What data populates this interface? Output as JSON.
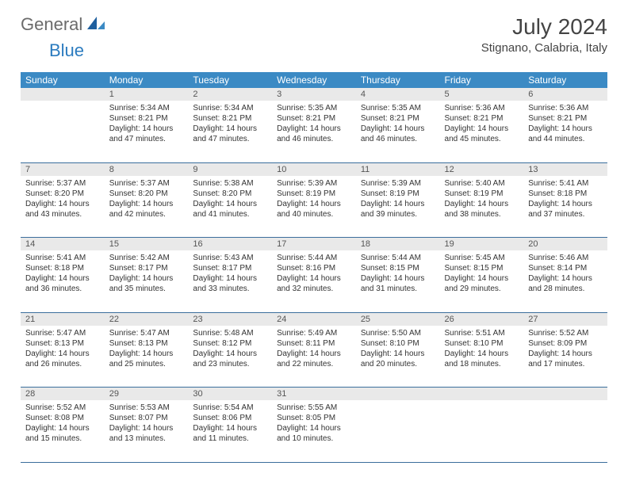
{
  "logo": {
    "part1": "General",
    "part2": "Blue"
  },
  "title": "July 2024",
  "location": "Stignano, Calabria, Italy",
  "colors": {
    "header_bg": "#3b8ac4",
    "header_text": "#ffffff",
    "daynum_bg": "#e9e9e9",
    "daynum_text": "#555555",
    "body_text": "#333333",
    "row_border": "#3b6e9c",
    "logo_gray": "#6b6b6b",
    "logo_blue": "#2b7bbf"
  },
  "weekdays": [
    "Sunday",
    "Monday",
    "Tuesday",
    "Wednesday",
    "Thursday",
    "Friday",
    "Saturday"
  ],
  "weeks": [
    [
      {
        "n": "",
        "sunrise": "",
        "sunset": "",
        "daylight": ""
      },
      {
        "n": "1",
        "sunrise": "Sunrise: 5:34 AM",
        "sunset": "Sunset: 8:21 PM",
        "daylight": "Daylight: 14 hours and 47 minutes."
      },
      {
        "n": "2",
        "sunrise": "Sunrise: 5:34 AM",
        "sunset": "Sunset: 8:21 PM",
        "daylight": "Daylight: 14 hours and 47 minutes."
      },
      {
        "n": "3",
        "sunrise": "Sunrise: 5:35 AM",
        "sunset": "Sunset: 8:21 PM",
        "daylight": "Daylight: 14 hours and 46 minutes."
      },
      {
        "n": "4",
        "sunrise": "Sunrise: 5:35 AM",
        "sunset": "Sunset: 8:21 PM",
        "daylight": "Daylight: 14 hours and 46 minutes."
      },
      {
        "n": "5",
        "sunrise": "Sunrise: 5:36 AM",
        "sunset": "Sunset: 8:21 PM",
        "daylight": "Daylight: 14 hours and 45 minutes."
      },
      {
        "n": "6",
        "sunrise": "Sunrise: 5:36 AM",
        "sunset": "Sunset: 8:21 PM",
        "daylight": "Daylight: 14 hours and 44 minutes."
      }
    ],
    [
      {
        "n": "7",
        "sunrise": "Sunrise: 5:37 AM",
        "sunset": "Sunset: 8:20 PM",
        "daylight": "Daylight: 14 hours and 43 minutes."
      },
      {
        "n": "8",
        "sunrise": "Sunrise: 5:37 AM",
        "sunset": "Sunset: 8:20 PM",
        "daylight": "Daylight: 14 hours and 42 minutes."
      },
      {
        "n": "9",
        "sunrise": "Sunrise: 5:38 AM",
        "sunset": "Sunset: 8:20 PM",
        "daylight": "Daylight: 14 hours and 41 minutes."
      },
      {
        "n": "10",
        "sunrise": "Sunrise: 5:39 AM",
        "sunset": "Sunset: 8:19 PM",
        "daylight": "Daylight: 14 hours and 40 minutes."
      },
      {
        "n": "11",
        "sunrise": "Sunrise: 5:39 AM",
        "sunset": "Sunset: 8:19 PM",
        "daylight": "Daylight: 14 hours and 39 minutes."
      },
      {
        "n": "12",
        "sunrise": "Sunrise: 5:40 AM",
        "sunset": "Sunset: 8:19 PM",
        "daylight": "Daylight: 14 hours and 38 minutes."
      },
      {
        "n": "13",
        "sunrise": "Sunrise: 5:41 AM",
        "sunset": "Sunset: 8:18 PM",
        "daylight": "Daylight: 14 hours and 37 minutes."
      }
    ],
    [
      {
        "n": "14",
        "sunrise": "Sunrise: 5:41 AM",
        "sunset": "Sunset: 8:18 PM",
        "daylight": "Daylight: 14 hours and 36 minutes."
      },
      {
        "n": "15",
        "sunrise": "Sunrise: 5:42 AM",
        "sunset": "Sunset: 8:17 PM",
        "daylight": "Daylight: 14 hours and 35 minutes."
      },
      {
        "n": "16",
        "sunrise": "Sunrise: 5:43 AM",
        "sunset": "Sunset: 8:17 PM",
        "daylight": "Daylight: 14 hours and 33 minutes."
      },
      {
        "n": "17",
        "sunrise": "Sunrise: 5:44 AM",
        "sunset": "Sunset: 8:16 PM",
        "daylight": "Daylight: 14 hours and 32 minutes."
      },
      {
        "n": "18",
        "sunrise": "Sunrise: 5:44 AM",
        "sunset": "Sunset: 8:15 PM",
        "daylight": "Daylight: 14 hours and 31 minutes."
      },
      {
        "n": "19",
        "sunrise": "Sunrise: 5:45 AM",
        "sunset": "Sunset: 8:15 PM",
        "daylight": "Daylight: 14 hours and 29 minutes."
      },
      {
        "n": "20",
        "sunrise": "Sunrise: 5:46 AM",
        "sunset": "Sunset: 8:14 PM",
        "daylight": "Daylight: 14 hours and 28 minutes."
      }
    ],
    [
      {
        "n": "21",
        "sunrise": "Sunrise: 5:47 AM",
        "sunset": "Sunset: 8:13 PM",
        "daylight": "Daylight: 14 hours and 26 minutes."
      },
      {
        "n": "22",
        "sunrise": "Sunrise: 5:47 AM",
        "sunset": "Sunset: 8:13 PM",
        "daylight": "Daylight: 14 hours and 25 minutes."
      },
      {
        "n": "23",
        "sunrise": "Sunrise: 5:48 AM",
        "sunset": "Sunset: 8:12 PM",
        "daylight": "Daylight: 14 hours and 23 minutes."
      },
      {
        "n": "24",
        "sunrise": "Sunrise: 5:49 AM",
        "sunset": "Sunset: 8:11 PM",
        "daylight": "Daylight: 14 hours and 22 minutes."
      },
      {
        "n": "25",
        "sunrise": "Sunrise: 5:50 AM",
        "sunset": "Sunset: 8:10 PM",
        "daylight": "Daylight: 14 hours and 20 minutes."
      },
      {
        "n": "26",
        "sunrise": "Sunrise: 5:51 AM",
        "sunset": "Sunset: 8:10 PM",
        "daylight": "Daylight: 14 hours and 18 minutes."
      },
      {
        "n": "27",
        "sunrise": "Sunrise: 5:52 AM",
        "sunset": "Sunset: 8:09 PM",
        "daylight": "Daylight: 14 hours and 17 minutes."
      }
    ],
    [
      {
        "n": "28",
        "sunrise": "Sunrise: 5:52 AM",
        "sunset": "Sunset: 8:08 PM",
        "daylight": "Daylight: 14 hours and 15 minutes."
      },
      {
        "n": "29",
        "sunrise": "Sunrise: 5:53 AM",
        "sunset": "Sunset: 8:07 PM",
        "daylight": "Daylight: 14 hours and 13 minutes."
      },
      {
        "n": "30",
        "sunrise": "Sunrise: 5:54 AM",
        "sunset": "Sunset: 8:06 PM",
        "daylight": "Daylight: 14 hours and 11 minutes."
      },
      {
        "n": "31",
        "sunrise": "Sunrise: 5:55 AM",
        "sunset": "Sunset: 8:05 PM",
        "daylight": "Daylight: 14 hours and 10 minutes."
      },
      {
        "n": "",
        "sunrise": "",
        "sunset": "",
        "daylight": ""
      },
      {
        "n": "",
        "sunrise": "",
        "sunset": "",
        "daylight": ""
      },
      {
        "n": "",
        "sunrise": "",
        "sunset": "",
        "daylight": ""
      }
    ]
  ]
}
